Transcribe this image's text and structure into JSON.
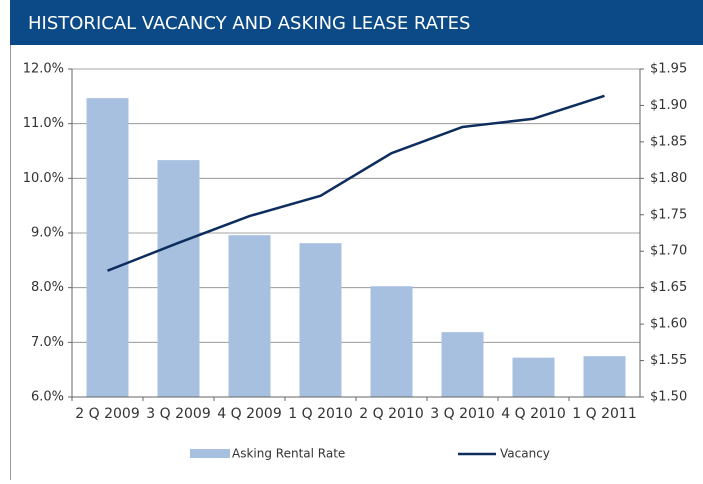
{
  "chart_data": {
    "type": "bar-line",
    "title": "HISTORICAL VACANCY AND ASKING LEASE RATES",
    "categories": [
      "2 Q 2009",
      "3 Q 2009",
      "4 Q 2009",
      "1 Q 2010",
      "2 Q 2010",
      "3 Q 2010",
      "4 Q 2010",
      "1 Q 2011"
    ],
    "series": [
      {
        "name": "Asking Rental Rate",
        "type": "bar",
        "axis": "y2",
        "color": "#a7c0df",
        "values": [
          1.91,
          1.825,
          1.722,
          1.711,
          1.652,
          1.589,
          1.554,
          1.556
        ]
      },
      {
        "name": "Vacancy",
        "type": "line",
        "axis": "y",
        "color": "#0d2d5e",
        "values": [
          8.31,
          8.82,
          9.31,
          9.68,
          10.46,
          10.94,
          11.09,
          11.51
        ]
      }
    ],
    "ylim": [
      6,
      12
    ],
    "yticks": [
      {
        "value": 6,
        "label": "6.0%"
      },
      {
        "value": 7,
        "label": "7.0%"
      },
      {
        "value": 8,
        "label": "8.0%"
      },
      {
        "value": 9,
        "label": "9.0%"
      },
      {
        "value": 10,
        "label": "10.0%"
      },
      {
        "value": 11,
        "label": "11.0%"
      },
      {
        "value": 12,
        "label": "12.0%"
      }
    ],
    "y2lim": [
      1.5,
      1.95
    ],
    "y2ticks": [
      {
        "value": 1.5,
        "label": "$1.50"
      },
      {
        "value": 1.55,
        "label": "$1.55"
      },
      {
        "value": 1.6,
        "label": "$1.60"
      },
      {
        "value": 1.65,
        "label": "$1.65"
      },
      {
        "value": 1.7,
        "label": "$1.70"
      },
      {
        "value": 1.75,
        "label": "$1.75"
      },
      {
        "value": 1.8,
        "label": "$1.80"
      },
      {
        "value": 1.85,
        "label": "$1.85"
      },
      {
        "value": 1.9,
        "label": "$1.90"
      },
      {
        "value": 1.95,
        "label": "$1.95"
      }
    ],
    "grid": true
  }
}
